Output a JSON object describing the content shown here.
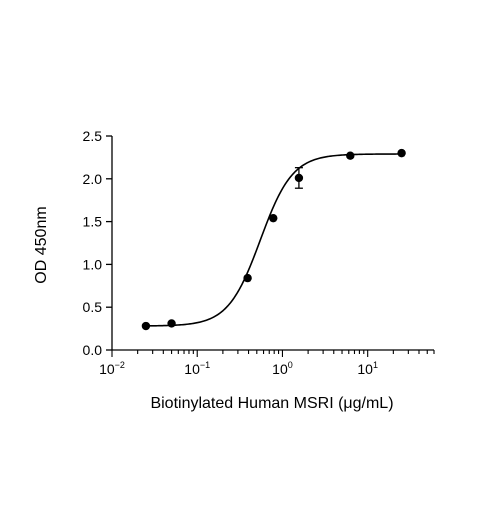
{
  "chart_data": {
    "type": "scatter",
    "title": "",
    "xlabel": "Biotinylated Human MSRI (μg/mL)",
    "ylabel": "OD 450nm",
    "xscale": "log",
    "xlim": [
      0.01,
      60
    ],
    "ylim": [
      0,
      2.5
    ],
    "x_ticks": [
      {
        "base": "10",
        "exp": "-2"
      },
      {
        "base": "10",
        "exp": "-1"
      },
      {
        "base": "10",
        "exp": "0"
      },
      {
        "base": "10",
        "exp": "1"
      }
    ],
    "y_ticks": [
      "0.0",
      "0.5",
      "1.0",
      "1.5",
      "2.0",
      "2.5"
    ],
    "grid": false,
    "legend": "none",
    "series": [
      {
        "points": [
          {
            "x": 0.025,
            "y": 0.28
          },
          {
            "x": 0.05,
            "y": 0.31
          },
          {
            "x": 0.39,
            "y": 0.84
          },
          {
            "x": 0.78,
            "y": 1.54
          },
          {
            "x": 1.56,
            "y": 2.01,
            "err": 0.12
          },
          {
            "x": 6.25,
            "y": 2.27
          },
          {
            "x": 25,
            "y": 2.3
          }
        ],
        "fit": {
          "model": "4PL",
          "bottom": 0.28,
          "top": 2.29,
          "ec50": 0.55,
          "hill": 2.3
        },
        "color": "#000000"
      }
    ]
  }
}
